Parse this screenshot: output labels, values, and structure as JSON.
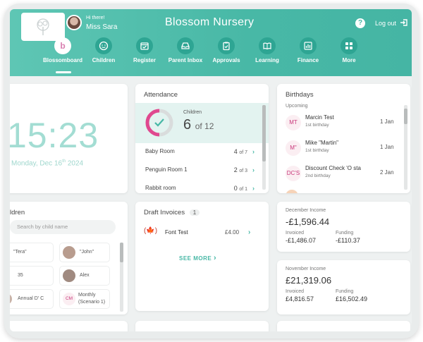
{
  "header": {
    "greeting": "Hi there!",
    "user_name": "Miss Sara",
    "app_title": "Blossom Nursery",
    "help_label": "?",
    "logout_label": "Log out"
  },
  "nav": {
    "items": [
      {
        "label": "Blossomboard",
        "icon": "blossom-icon"
      },
      {
        "label": "Children",
        "icon": "child-face-icon"
      },
      {
        "label": "Register",
        "icon": "calendar-check-icon"
      },
      {
        "label": "Parent Inbox",
        "icon": "inbox-icon"
      },
      {
        "label": "Approvals",
        "icon": "clipboard-check-icon"
      },
      {
        "label": "Learning",
        "icon": "book-icon"
      },
      {
        "label": "Finance",
        "icon": "chart-icon"
      },
      {
        "label": "More",
        "icon": "grid-icon"
      }
    ]
  },
  "clock": {
    "time": "15:23",
    "date_prefix": "Monday, Dec 16",
    "date_suffix": "th",
    "year": " 2024"
  },
  "attendance": {
    "title": "Attendance",
    "children_label": "Children",
    "present": "6",
    "of_total": "of 12",
    "progress": 0.5,
    "rooms": [
      {
        "name": "Baby Room",
        "count": "4",
        "of": "of 7"
      },
      {
        "name": "Penguin Room 1",
        "count": "2",
        "of": "of 3"
      },
      {
        "name": "Rabbit room",
        "count": "0",
        "of": "of 1"
      }
    ]
  },
  "birthdays": {
    "title": "Birthdays",
    "section": "Upcoming",
    "items": [
      {
        "initials": "MT",
        "name": "Marcin Test",
        "sub": "1st birthday",
        "date": "1 Jan"
      },
      {
        "initials": "M\"",
        "name": "Mike \"Martin\"",
        "sub": "1st birthday",
        "date": "1 Jan"
      },
      {
        "initials": "DC'S",
        "name": "Discount Check 'O sta",
        "sub": "2nd birthday",
        "date": "2 Jan"
      }
    ]
  },
  "children": {
    "title": "ldren",
    "search_placeholder": "Search by child name",
    "chips": [
      {
        "label": "\"Tera\""
      },
      {
        "label": "\"John\""
      },
      {
        "label": "35"
      },
      {
        "label": "Alex"
      },
      {
        "label": "Annual D' C"
      },
      {
        "initials": "CM",
        "label": "Monthly",
        "label2": "(Scenario 1)"
      }
    ]
  },
  "invoices": {
    "title": "Draft Invoices",
    "count": "1",
    "items": [
      {
        "name": "Font Test",
        "amount": "£4.00"
      }
    ],
    "see_more": "SEE MORE"
  },
  "december_income": {
    "title": "December Income",
    "total": "-£1,596.44",
    "invoiced_label": "Invoiced",
    "invoiced": "-£1,486.07",
    "funding_label": "Funding",
    "funding": "-£110.37"
  },
  "november_income": {
    "title": "November Income",
    "total": "£21,319.06",
    "invoiced_label": "Invoiced",
    "invoiced": "£4,816.57",
    "funding_label": "Funding",
    "funding": "£16,502.49"
  },
  "colors": {
    "accent": "#48b8a6",
    "ring_present": "#e0488f",
    "ring_rest": "#d9dcdc"
  }
}
